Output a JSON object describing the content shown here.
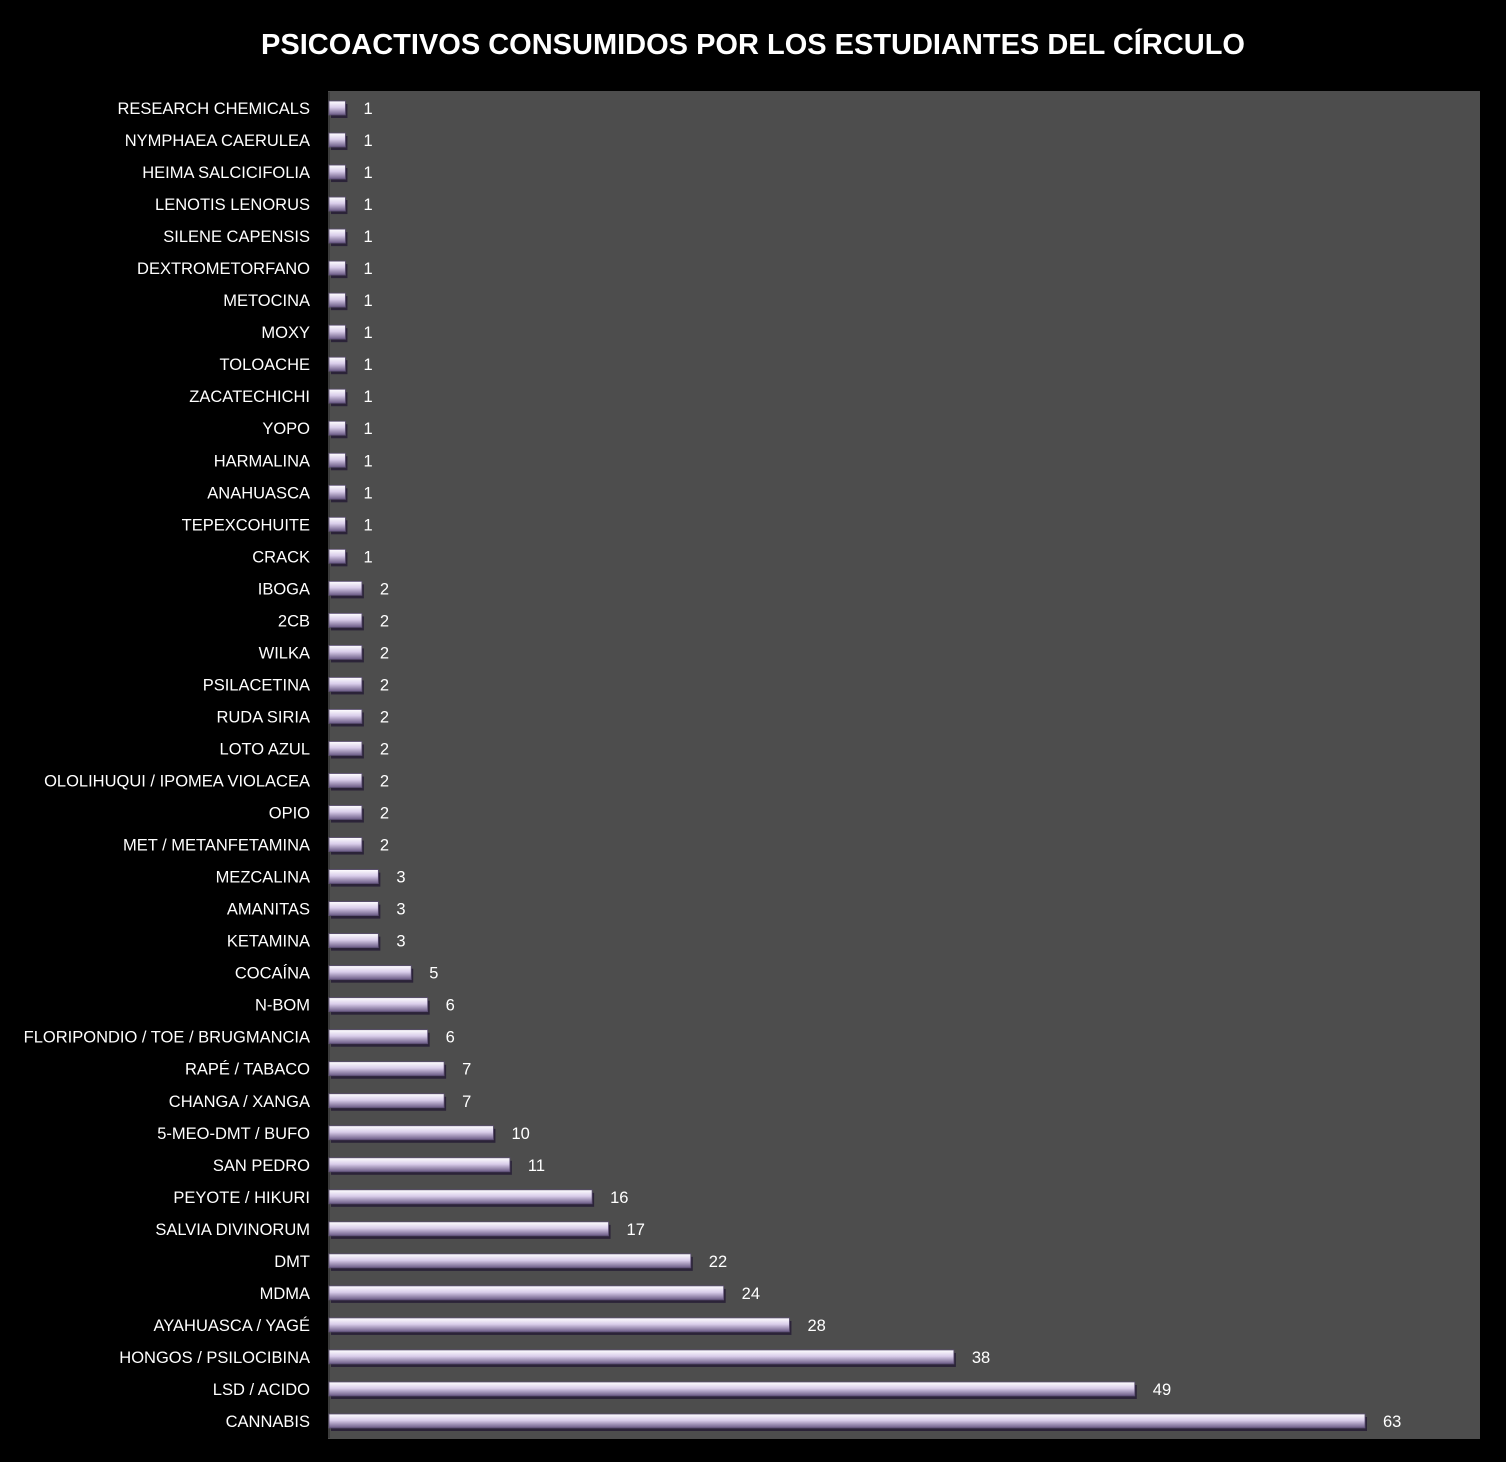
{
  "chart_data": {
    "type": "bar",
    "orientation": "horizontal",
    "title": "PSICOACTIVOS CONSUMIDOS POR LOS ESTUDIANTES DEL CÍRCULO",
    "xlabel": "",
    "ylabel": "",
    "xlim": [
      0,
      63
    ],
    "grid": false,
    "legend": "none",
    "colors": {
      "page_background": "#000000",
      "plot_background": "#4d4d4d",
      "bar_light": "#ffffff",
      "bar_mid": "#d9cdea",
      "bar_dark": "#6a5a85",
      "text": "#ffffff"
    },
    "categories": [
      "RESEARCH CHEMICALS",
      "NYMPHAEA CAERULEA",
      "HEIMA SALCICIFOLIA",
      "LENOTIS LENORUS",
      "SILENE CAPENSIS",
      "DEXTROMETORFANO",
      "METOCINA",
      "MOXY",
      "TOLOACHE",
      "ZACATECHICHI",
      "YOPO",
      "HARMALINA",
      "ANAHUASCA",
      "TEPEXCOHUITE",
      "CRACK",
      "IBOGA",
      "2CB",
      "WILKA",
      "PSILACETINA",
      "RUDA SIRIA",
      "LOTO AZUL",
      "OLOLIHUQUI / IPOMEA VIOLACEA",
      "OPIO",
      "MET / METANFETAMINA",
      "MEZCALINA",
      "AMANITAS",
      "KETAMINA",
      "COCAÍNA",
      "N-BOM",
      "FLORIPONDIO / TOE / BRUGMANCIA",
      "RAPÉ / TABACO",
      "CHANGA / XANGA",
      "5-MEO-DMT / BUFO",
      "SAN PEDRO",
      "PEYOTE / HIKURI",
      "SALVIA DIVINORUM",
      "DMT",
      "MDMA",
      "AYAHUASCA / YAGÉ",
      "HONGOS / PSILOCIBINA",
      "LSD / ACIDO",
      "CANNABIS"
    ],
    "values": [
      1,
      1,
      1,
      1,
      1,
      1,
      1,
      1,
      1,
      1,
      1,
      1,
      1,
      1,
      1,
      2,
      2,
      2,
      2,
      2,
      2,
      2,
      2,
      2,
      3,
      3,
      3,
      5,
      6,
      6,
      7,
      7,
      10,
      11,
      16,
      17,
      22,
      24,
      28,
      38,
      49,
      63
    ]
  }
}
